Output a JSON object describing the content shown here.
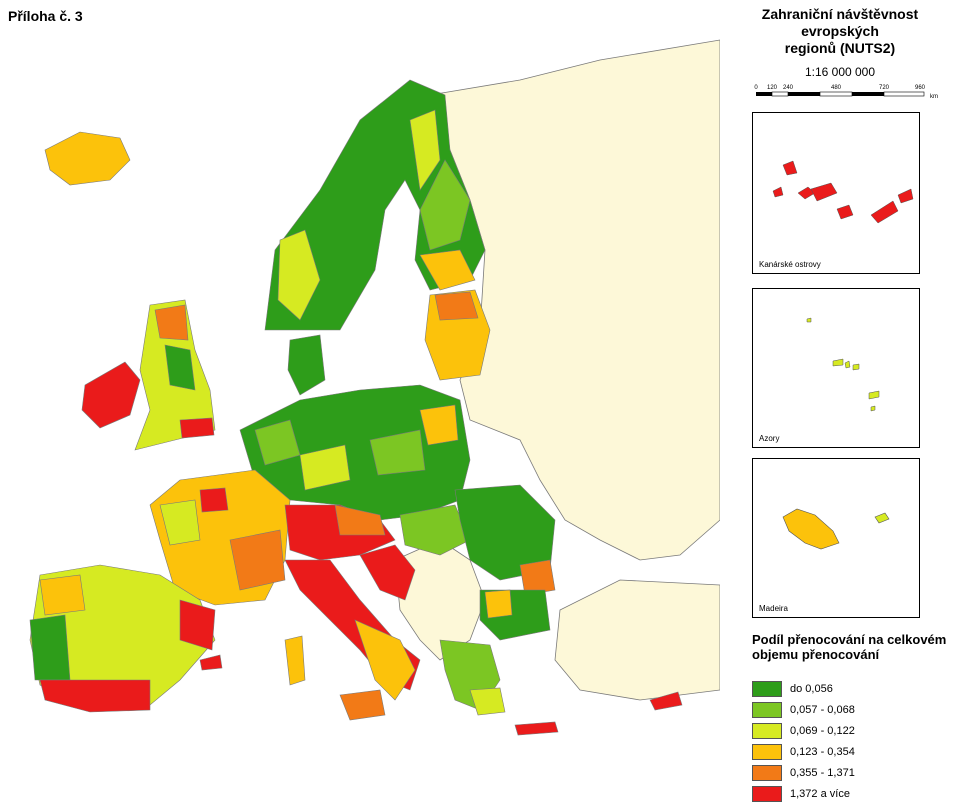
{
  "annex_label": "Příloha č. 3",
  "title_line1": "Zahraniční návštěvnost evropských",
  "title_line2": "regionů (NUTS2)",
  "scale": "1:16 000 000",
  "scalebar": {
    "ticks": [
      "0",
      "120",
      "240",
      "480",
      "720",
      "960"
    ],
    "unit": "km"
  },
  "insets": [
    {
      "label": "Kanárské ostrovy"
    },
    {
      "label": "Azory"
    },
    {
      "label": "Madeira"
    }
  ],
  "legend": {
    "title_line1": "Podíl přenocování na celkovém",
    "title_line2": "objemu přenocování",
    "classes": [
      {
        "label": "do 0,056",
        "color": "#2e9d1a"
      },
      {
        "label": "0,057 - 0,068",
        "color": "#7cc623"
      },
      {
        "label": "0,069 - 0,122",
        "color": "#d6ea22"
      },
      {
        "label": "0,123 - 0,354",
        "color": "#fcc20b"
      },
      {
        "label": "0,355 - 1,371",
        "color": "#f27a17"
      },
      {
        "label": "1,372 a více",
        "color": "#ea1b1b"
      }
    ]
  },
  "colors": {
    "non_eu": "#fdf8d8",
    "sea": "#ffffff",
    "border": "#7a7a7a"
  }
}
